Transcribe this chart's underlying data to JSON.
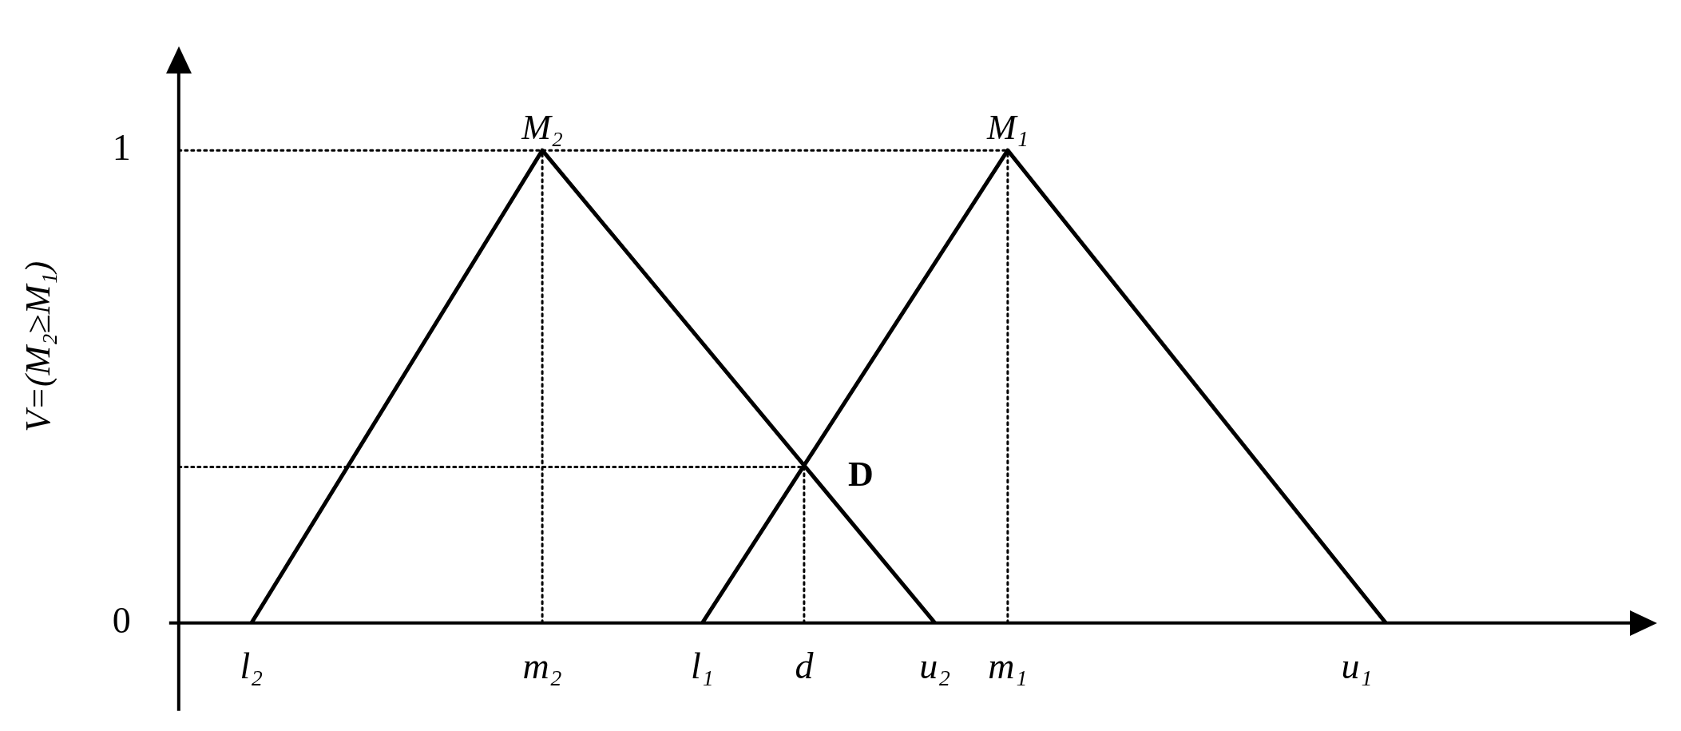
{
  "chart_data": {
    "type": "line",
    "ylabel": "V=(M₂≥M₁)",
    "ylim": [
      0,
      1.17
    ],
    "yticks": [
      0,
      1
    ],
    "grid": false,
    "legend": false,
    "marker": "none",
    "categories": [
      null,
      null,
      null,
      null,
      null,
      "l₂",
      null,
      null,
      null,
      null,
      null,
      null,
      null,
      null,
      null,
      null,
      null,
      null,
      null,
      null,
      null,
      null,
      null,
      null,
      null,
      "m₂",
      null,
      null,
      null,
      null,
      null,
      null,
      null,
      null,
      null,
      null,
      "l₁",
      null,
      null,
      null,
      null,
      null,
      null,
      "d",
      null,
      null,
      null,
      null,
      null,
      null,
      null,
      null,
      "u₂",
      null,
      null,
      null,
      null,
      "m₁",
      null,
      null,
      null,
      null,
      null,
      null,
      null,
      null,
      null,
      null,
      null,
      null,
      null,
      null,
      null,
      null,
      null,
      null,
      null,
      null,
      null,
      null,
      null,
      "u₁",
      null,
      null,
      null,
      null,
      null,
      null,
      null,
      null,
      null,
      null,
      null,
      null,
      null,
      null,
      null,
      null,
      null,
      null,
      null
    ],
    "annotations": [
      {
        "text": "M₂",
        "x": "m₂",
        "y": 1
      },
      {
        "text": "M₁",
        "x": "m₁",
        "y": 1
      },
      {
        "text": "D",
        "x": "d",
        "y": 0.33
      }
    ],
    "series": [
      {
        "color": "#000000",
        "line_style": "solid",
        "values": [
          null,
          null,
          null,
          null,
          null,
          0,
          null,
          null,
          null,
          null,
          null,
          null,
          null,
          null,
          null,
          null,
          null,
          null,
          null,
          null,
          null,
          null,
          null,
          null,
          null,
          1,
          null,
          null,
          null,
          null,
          null,
          null,
          null,
          null,
          null,
          null,
          null,
          null,
          null,
          null,
          null,
          null,
          null,
          null,
          null,
          null,
          null,
          null,
          null,
          null,
          null,
          null,
          0,
          null,
          null,
          null,
          null,
          null,
          null,
          null,
          null,
          null,
          null,
          null,
          null,
          null,
          null,
          null,
          null,
          null,
          null,
          null,
          null,
          null,
          null,
          null,
          null,
          null,
          null,
          null,
          null,
          null,
          null,
          null,
          null,
          null,
          null,
          null,
          null,
          null,
          null,
          null,
          null,
          null,
          null,
          null,
          null,
          null,
          null,
          null,
          null
        ]
      },
      {
        "color": "#000000",
        "line_style": "solid",
        "values": [
          null,
          null,
          null,
          null,
          null,
          null,
          null,
          null,
          null,
          null,
          null,
          null,
          null,
          null,
          null,
          null,
          null,
          null,
          null,
          null,
          null,
          null,
          null,
          null,
          null,
          null,
          null,
          null,
          null,
          null,
          null,
          null,
          null,
          null,
          null,
          null,
          0,
          null,
          null,
          null,
          null,
          null,
          null,
          null,
          null,
          null,
          null,
          null,
          null,
          null,
          null,
          null,
          null,
          null,
          null,
          null,
          null,
          1,
          null,
          null,
          null,
          null,
          null,
          null,
          null,
          null,
          null,
          null,
          null,
          null,
          null,
          null,
          null,
          null,
          null,
          null,
          null,
          null,
          null,
          null,
          null,
          null,
          null,
          0,
          null,
          null,
          null,
          null,
          null,
          null,
          null,
          null,
          null,
          null,
          null,
          null,
          null,
          null,
          null,
          null,
          null
        ]
      },
      {
        "color": "#000000",
        "line_style": "dotted",
        "values": [
          1,
          null,
          null,
          null,
          null,
          null,
          null,
          null,
          null,
          null,
          null,
          null,
          null,
          null,
          null,
          null,
          null,
          null,
          null,
          null,
          null,
          null,
          null,
          null,
          null,
          null,
          null,
          null,
          null,
          null,
          null,
          null,
          null,
          null,
          null,
          null,
          null,
          null,
          null,
          null,
          null,
          null,
          null,
          null,
          null,
          null,
          null,
          null,
          null,
          null,
          null,
          null,
          null,
          null,
          null,
          null,
          null,
          1,
          null,
          null,
          null,
          null,
          null,
          null,
          null,
          null,
          null,
          null,
          null,
          null,
          null,
          null,
          null,
          null,
          null,
          null,
          null,
          null,
          null,
          null,
          null,
          null,
          null,
          null,
          null,
          null,
          null,
          null,
          null,
          null,
          null,
          null,
          null,
          null,
          null,
          null,
          null,
          null,
          null,
          null,
          null
        ]
      },
      {
        "color": "#000000",
        "line_style": "dotted",
        "values": [
          0.33,
          null,
          null,
          null,
          null,
          null,
          null,
          null,
          null,
          null,
          null,
          null,
          null,
          null,
          null,
          null,
          null,
          null,
          null,
          null,
          null,
          null,
          null,
          null,
          null,
          null,
          null,
          null,
          null,
          null,
          null,
          null,
          null,
          null,
          null,
          null,
          null,
          null,
          null,
          null,
          null,
          null,
          null,
          0.33,
          null,
          null,
          null,
          null,
          null,
          null,
          null,
          null,
          null,
          null,
          null,
          null,
          null,
          null,
          null,
          null,
          null,
          null,
          null,
          null,
          null,
          null,
          null,
          null,
          null,
          null,
          null,
          null,
          null,
          null,
          null,
          null,
          null,
          null,
          null,
          null,
          null,
          null,
          null,
          null,
          null,
          null,
          null,
          null,
          null,
          null,
          null,
          null,
          null,
          null,
          null,
          null,
          null,
          null,
          null,
          null,
          null
        ]
      },
      {
        "color": "#000000",
        "line_style": "dotted",
        "x": [
          "m₂",
          "m₂"
        ],
        "values": [
          0,
          1
        ]
      },
      {
        "color": "#000000",
        "line_style": "dotted",
        "x": [
          "m₁",
          "m₁"
        ],
        "values": [
          0,
          1
        ]
      },
      {
        "color": "#000000",
        "line_style": "dotted",
        "x": [
          "d",
          "d"
        ],
        "values": [
          0,
          0.33
        ]
      }
    ]
  }
}
